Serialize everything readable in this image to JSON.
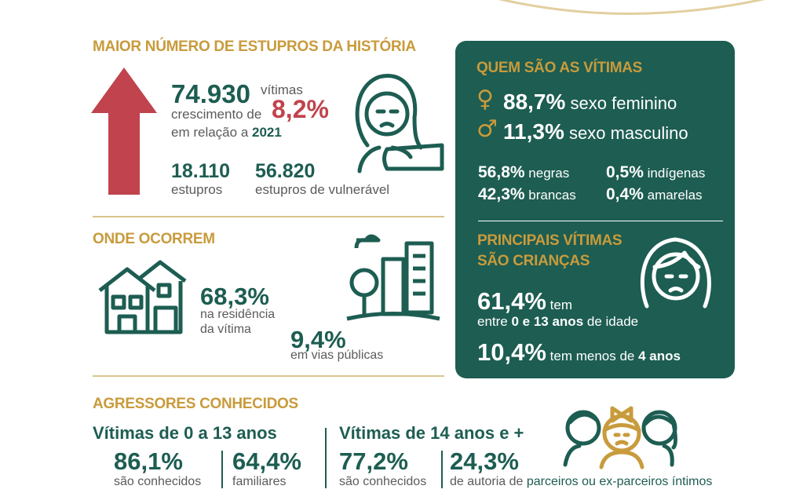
{
  "top": {
    "title": "MAIOR NÚMERO DE ESTUPROS DA HISTÓRIA",
    "total": "74.930",
    "total_unit": "vítimas",
    "growth_prefix": "crescimento de",
    "growth": "8,2%",
    "relative": "em relação a",
    "year": "2021",
    "stats": [
      {
        "value": "18.110",
        "label": "estupros"
      },
      {
        "value": "56.820",
        "label": "estupros de vulnerável"
      }
    ]
  },
  "where": {
    "title": "ONDE OCORREM",
    "items": [
      {
        "value": "68,3%",
        "label_lines": [
          "na residência",
          "da vítima"
        ]
      },
      {
        "value": "9,4%",
        "label_lines": [
          "em vias públicas"
        ]
      }
    ]
  },
  "victims": {
    "title": "QUEM SÃO AS VÍTIMAS",
    "sex": [
      {
        "symbol": "♀",
        "value": "88,7%",
        "label": "sexo feminino"
      },
      {
        "symbol": "♂",
        "value": "11,3%",
        "label": "sexo masculino"
      }
    ],
    "race": [
      {
        "value": "56,8%",
        "label": "negras"
      },
      {
        "value": "0,5%",
        "label": "indígenas"
      },
      {
        "value": "42,3%",
        "label": "brancas"
      },
      {
        "value": "0,4%",
        "label": "amarelas"
      }
    ]
  },
  "children": {
    "title_lines": [
      "PRINCIPAIS VÍTIMAS",
      "SÃO CRIANÇAS"
    ],
    "first": {
      "value": "61,4%",
      "word": "tem",
      "prefix": "entre",
      "range": "0 e 13 anos",
      "suffix": "de idade"
    },
    "second": {
      "value": "10,4%",
      "prefix": "tem menos de",
      "range": "4 anos"
    }
  },
  "aggressors": {
    "title": "AGRESSORES CONHECIDOS",
    "groups": [
      {
        "title": "Vítimas de 0 a 13 anos",
        "stats": [
          {
            "value": "86,1%",
            "label": "são conhecidos"
          },
          {
            "value": "64,4%",
            "label": "familiares"
          }
        ]
      },
      {
        "title": "Vítimas de 14 anos e +",
        "stats": [
          {
            "value": "77,2%",
            "label": "são conhecidos"
          },
          {
            "value": "24,3%",
            "label_prefix": "de autoria de",
            "label": "parceiros ou ex-parceiros íntimos"
          }
        ]
      }
    ]
  }
}
